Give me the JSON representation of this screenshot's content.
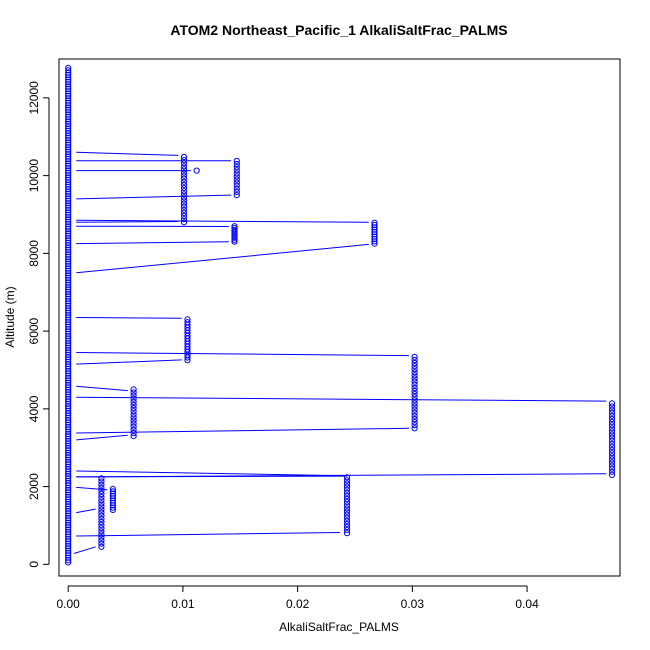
{
  "chart_data": {
    "type": "scatter",
    "title": "ATOM2 Northeast_Pacific_1 AlkaliSaltFrac_PALMS",
    "xlabel": "AlkaliSaltFrac_PALMS",
    "ylabel": "Altitude (m)",
    "xlim": [
      -0.0008,
      0.0481
    ],
    "ylim": [
      -300,
      13000
    ],
    "x_ticks": [
      0.0,
      0.01,
      0.02,
      0.03,
      0.04
    ],
    "x_tick_labels": [
      "0.00",
      "0.01",
      "0.02",
      "0.03",
      "0.04"
    ],
    "y_ticks": [
      0,
      2000,
      4000,
      6000,
      8000,
      10000,
      12000
    ],
    "y_tick_labels": [
      "0",
      "2000",
      "4000",
      "6000",
      "8000",
      "10000",
      "12000"
    ],
    "grid": false,
    "legend": "none",
    "colors": {
      "points": "#0000ff",
      "lines": "#0000ff"
    },
    "clusters": [
      {
        "x": 0.0,
        "y_min": 50,
        "y_max": 12800,
        "step": 60
      },
      {
        "x": 0.0029,
        "y_min": 450,
        "y_max": 2250,
        "step": 80
      },
      {
        "x": 0.0039,
        "y_min": 1400,
        "y_max": 1950,
        "step": 60
      },
      {
        "x": 0.0243,
        "y_min": 800,
        "y_max": 2300,
        "step": 80
      },
      {
        "x": 0.0057,
        "y_min": 3300,
        "y_max": 4500,
        "step": 80
      },
      {
        "x": 0.0302,
        "y_min": 3500,
        "y_max": 5350,
        "step": 80
      },
      {
        "x": 0.0474,
        "y_min": 2300,
        "y_max": 4200,
        "step": 80
      },
      {
        "x": 0.0104,
        "y_min": 5250,
        "y_max": 6300,
        "step": 70
      },
      {
        "x": 0.0145,
        "y_min": 8300,
        "y_max": 8700,
        "step": 50
      },
      {
        "x": 0.0267,
        "y_min": 8250,
        "y_max": 8800,
        "step": 60
      },
      {
        "x": 0.0101,
        "y_min": 8800,
        "y_max": 10500,
        "step": 80
      },
      {
        "x": 0.0147,
        "y_min": 9500,
        "y_max": 10400,
        "step": 80
      },
      {
        "x": 0.0112,
        "y_min": 10130,
        "y_max": 10130,
        "step": 50
      }
    ],
    "segments": [
      [
        0.0005,
        280,
        0.0024,
        450
      ],
      [
        0.0007,
        730,
        0.0237,
        820
      ],
      [
        0.0007,
        1330,
        0.0024,
        1420
      ],
      [
        0.0007,
        1980,
        0.0034,
        1920
      ],
      [
        0.0007,
        2250,
        0.0243,
        2270
      ],
      [
        0.0007,
        2400,
        0.0243,
        2280
      ],
      [
        0.0007,
        2250,
        0.0469,
        2330
      ],
      [
        0.0007,
        3200,
        0.0052,
        3320
      ],
      [
        0.0007,
        3380,
        0.0297,
        3500
      ],
      [
        0.0007,
        4300,
        0.0469,
        4200
      ],
      [
        0.0007,
        4580,
        0.0052,
        4470
      ],
      [
        0.0007,
        5150,
        0.0099,
        5260
      ],
      [
        0.0007,
        5450,
        0.0297,
        5370
      ],
      [
        0.0007,
        6350,
        0.0099,
        6330
      ],
      [
        0.0007,
        7500,
        0.0262,
        8230
      ],
      [
        0.0007,
        8250,
        0.014,
        8300
      ],
      [
        0.0007,
        8700,
        0.014,
        8690
      ],
      [
        0.0007,
        8850,
        0.0262,
        8800
      ],
      [
        0.0007,
        8800,
        0.0096,
        8820
      ],
      [
        0.0007,
        9400,
        0.0142,
        9500
      ],
      [
        0.0007,
        10130,
        0.0107,
        10130
      ],
      [
        0.0007,
        10380,
        0.0142,
        10380
      ],
      [
        0.0007,
        10600,
        0.0096,
        10520
      ]
    ]
  }
}
